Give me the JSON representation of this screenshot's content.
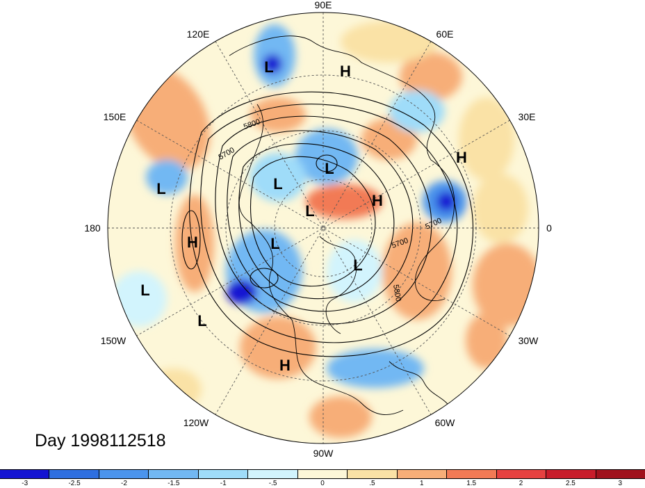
{
  "map": {
    "projection": "north-polar-stereographic",
    "longitude_labels": [
      "90E",
      "60E",
      "30E",
      "0",
      "30W",
      "60W",
      "90W",
      "120W",
      "150W",
      "180",
      "150E",
      "120E"
    ],
    "contour_labels": [
      "5800",
      "5700",
      "5700",
      "5700",
      "5800"
    ],
    "pressure_centers": [
      {
        "type": "L"
      },
      {
        "type": "H"
      },
      {
        "type": "H"
      },
      {
        "type": "L"
      },
      {
        "type": "L"
      },
      {
        "type": "L"
      },
      {
        "type": "H"
      },
      {
        "type": "L"
      },
      {
        "type": "H"
      },
      {
        "type": "L"
      },
      {
        "type": "L"
      },
      {
        "type": "L"
      },
      {
        "type": "L"
      },
      {
        "type": "H"
      }
    ]
  },
  "title": {
    "day_label": "Day 1998112518"
  },
  "colorbar": {
    "colors": [
      "#1414d2",
      "#2e6fe0",
      "#4b94ec",
      "#72b8f3",
      "#9fdcf9",
      "#d2f4fd",
      "#fdf7d8",
      "#fae2a6",
      "#f7ae78",
      "#f27a55",
      "#e64140",
      "#c81c2a",
      "#a0111c"
    ],
    "tick_labels": [
      "-3",
      "-2.5",
      "-2",
      "-1.5",
      "-1",
      "-.5",
      "0",
      ".5",
      "1",
      "1.5",
      "2",
      "2.5",
      "3"
    ]
  }
}
